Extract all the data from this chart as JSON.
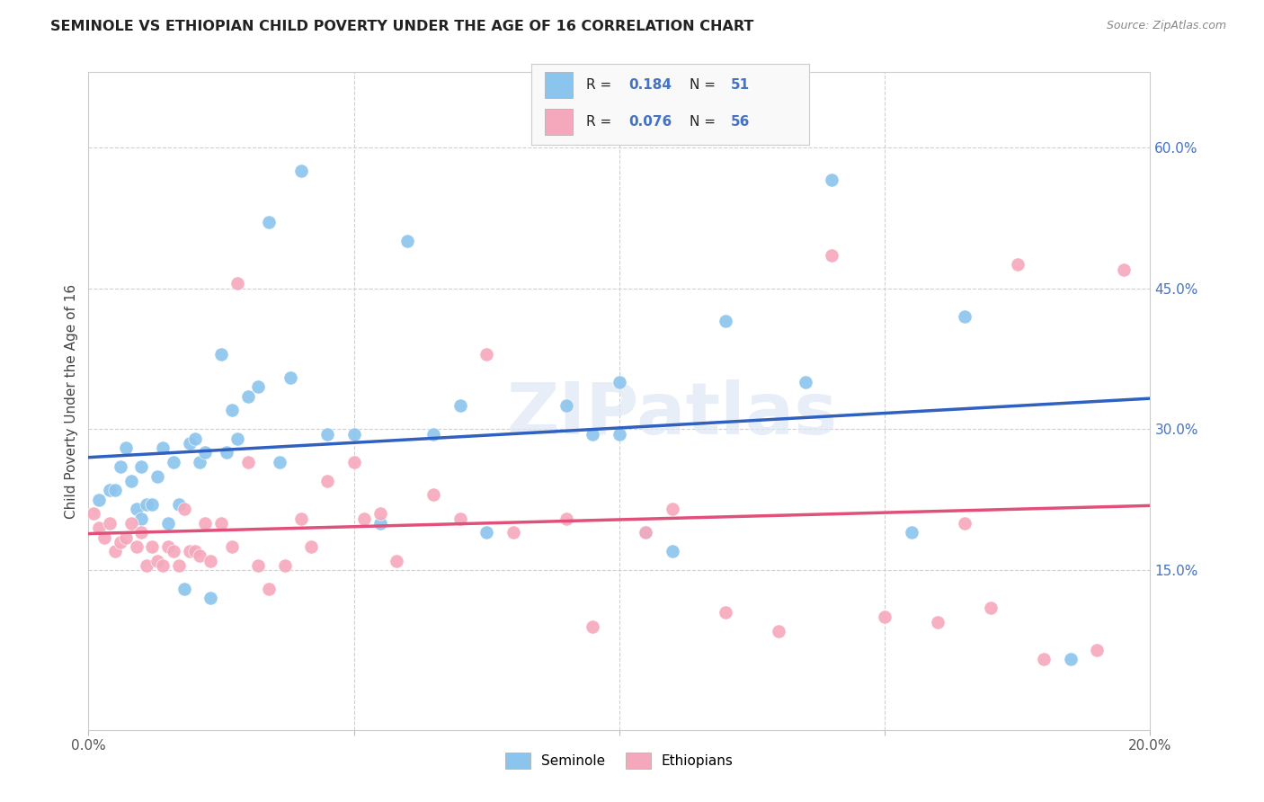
{
  "title": "SEMINOLE VS ETHIOPIAN CHILD POVERTY UNDER THE AGE OF 16 CORRELATION CHART",
  "source": "Source: ZipAtlas.com",
  "ylabel": "Child Poverty Under the Age of 16",
  "xlim": [
    0.0,
    0.2
  ],
  "ylim": [
    -0.02,
    0.68
  ],
  "yticks": [
    0.15,
    0.3,
    0.45,
    0.6
  ],
  "ytick_labels": [
    "15.0%",
    "30.0%",
    "45.0%",
    "60.0%"
  ],
  "xticks": [
    0.0,
    0.05,
    0.1,
    0.15,
    0.2
  ],
  "seminole_color": "#8BC4ED",
  "ethiopian_color": "#F5A8BC",
  "seminole_line_color": "#3060C0",
  "ethiopian_line_color": "#E0507A",
  "legend_R_seminole": "0.184",
  "legend_N_seminole": "51",
  "legend_R_ethiopian": "0.076",
  "legend_N_ethiopian": "56",
  "watermark": "ZIPatlas",
  "seminole_x": [
    0.002,
    0.004,
    0.005,
    0.006,
    0.007,
    0.008,
    0.009,
    0.01,
    0.01,
    0.011,
    0.012,
    0.013,
    0.014,
    0.015,
    0.016,
    0.017,
    0.018,
    0.019,
    0.02,
    0.021,
    0.022,
    0.023,
    0.025,
    0.026,
    0.027,
    0.028,
    0.03,
    0.032,
    0.034,
    0.036,
    0.038,
    0.04,
    0.045,
    0.05,
    0.055,
    0.06,
    0.065,
    0.07,
    0.075,
    0.09,
    0.095,
    0.1,
    0.1,
    0.105,
    0.11,
    0.12,
    0.135,
    0.14,
    0.155,
    0.165,
    0.185
  ],
  "seminole_y": [
    0.225,
    0.235,
    0.235,
    0.26,
    0.28,
    0.245,
    0.215,
    0.205,
    0.26,
    0.22,
    0.22,
    0.25,
    0.28,
    0.2,
    0.265,
    0.22,
    0.13,
    0.285,
    0.29,
    0.265,
    0.275,
    0.12,
    0.38,
    0.275,
    0.32,
    0.29,
    0.335,
    0.345,
    0.52,
    0.265,
    0.355,
    0.575,
    0.295,
    0.295,
    0.2,
    0.5,
    0.295,
    0.325,
    0.19,
    0.325,
    0.295,
    0.295,
    0.35,
    0.19,
    0.17,
    0.415,
    0.35,
    0.565,
    0.19,
    0.42,
    0.055
  ],
  "ethiopian_x": [
    0.001,
    0.002,
    0.003,
    0.004,
    0.005,
    0.006,
    0.007,
    0.008,
    0.009,
    0.01,
    0.011,
    0.012,
    0.013,
    0.014,
    0.015,
    0.016,
    0.017,
    0.018,
    0.019,
    0.02,
    0.021,
    0.022,
    0.023,
    0.025,
    0.027,
    0.028,
    0.03,
    0.032,
    0.034,
    0.037,
    0.04,
    0.042,
    0.045,
    0.05,
    0.052,
    0.055,
    0.058,
    0.065,
    0.07,
    0.075,
    0.08,
    0.09,
    0.095,
    0.105,
    0.11,
    0.12,
    0.13,
    0.14,
    0.15,
    0.16,
    0.165,
    0.17,
    0.175,
    0.18,
    0.19,
    0.195
  ],
  "ethiopian_y": [
    0.21,
    0.195,
    0.185,
    0.2,
    0.17,
    0.18,
    0.185,
    0.2,
    0.175,
    0.19,
    0.155,
    0.175,
    0.16,
    0.155,
    0.175,
    0.17,
    0.155,
    0.215,
    0.17,
    0.17,
    0.165,
    0.2,
    0.16,
    0.2,
    0.175,
    0.455,
    0.265,
    0.155,
    0.13,
    0.155,
    0.205,
    0.175,
    0.245,
    0.265,
    0.205,
    0.21,
    0.16,
    0.23,
    0.205,
    0.38,
    0.19,
    0.205,
    0.09,
    0.19,
    0.215,
    0.105,
    0.085,
    0.485,
    0.1,
    0.095,
    0.2,
    0.11,
    0.475,
    0.055,
    0.065,
    0.47
  ]
}
